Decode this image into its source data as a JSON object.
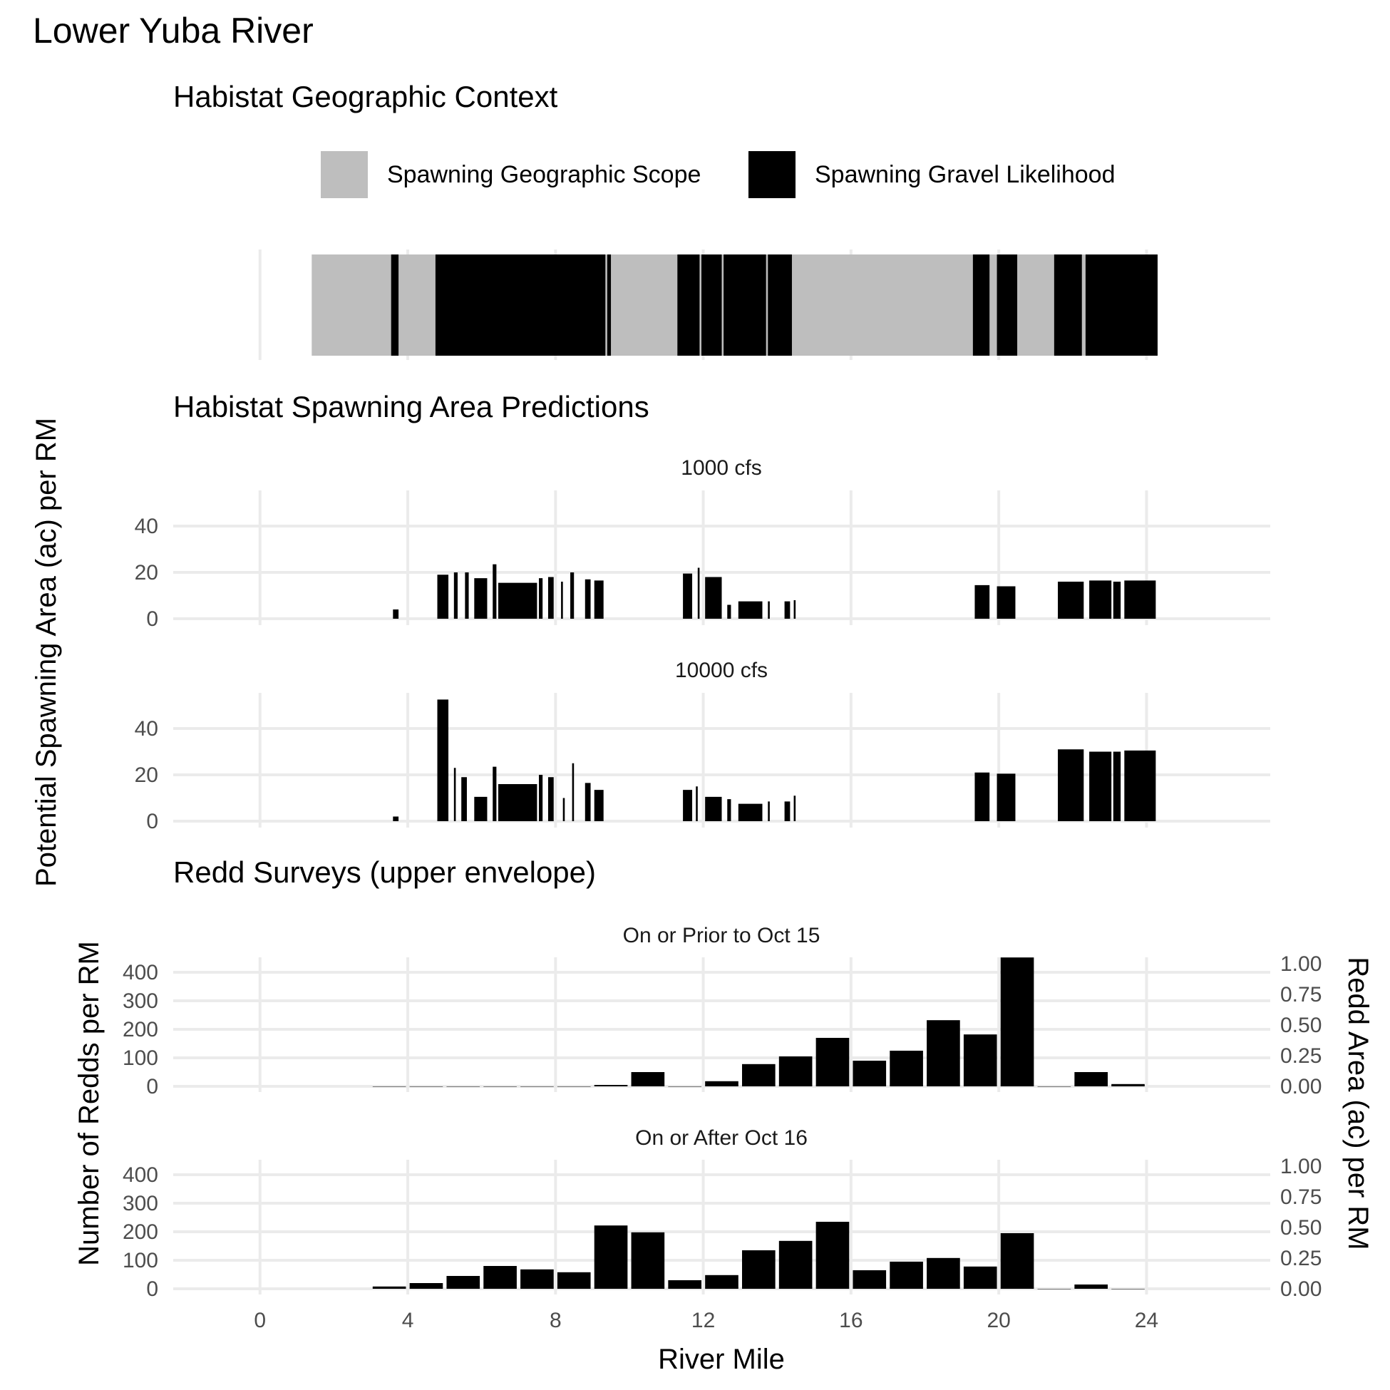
{
  "title": "Lower Yuba River",
  "geo": {
    "subtitle": "Habistat Geographic Context",
    "legend": [
      {
        "label": "Spawning Geographic Scope",
        "color": "#bebebe"
      },
      {
        "label": "Spawning Gravel Likelihood",
        "color": "#000000"
      }
    ],
    "scope": [
      [
        1.4,
        24.3
      ]
    ],
    "gravel": [
      [
        3.55,
        3.75
      ],
      [
        4.75,
        9.35
      ],
      [
        9.4,
        9.5
      ],
      [
        11.3,
        11.9
      ],
      [
        11.95,
        12.5
      ],
      [
        12.55,
        13.7
      ],
      [
        13.75,
        14.4
      ],
      [
        19.3,
        19.75
      ],
      [
        19.95,
        20.5
      ],
      [
        21.5,
        22.25
      ],
      [
        22.35,
        24.3
      ]
    ]
  },
  "pred": {
    "subtitle": "Habistat Spawning Area Predictions",
    "ylabel": "Potential Spawning Area (ac) per RM",
    "panels": [
      "1000 cfs",
      "10000 cfs"
    ]
  },
  "redd": {
    "subtitle": "Redd Surveys (upper envelope)",
    "ylabel": "Number of Redds per RM",
    "ylabel2": "Redd Area (ac) per RM",
    "panels": [
      "On or Prior to Oct 15",
      "On or After Oct 16"
    ]
  },
  "xlabel": "River Mile",
  "colors": {
    "grid": "#ebebeb",
    "bar": "#000000",
    "scope": "#bebebe"
  },
  "chart_data": [
    {
      "type": "bar",
      "title": "1000 cfs",
      "xlabel": "River Mile",
      "ylabel": "Potential Spawning Area (ac) per RM",
      "xlim": [
        -2.35,
        27.35
      ],
      "ylim": [
        0,
        55
      ],
      "x_ticks": [
        0,
        4,
        8,
        12,
        16,
        20,
        24
      ],
      "y_ticks": [
        0,
        20,
        40
      ],
      "bars": [
        {
          "x0": 3.6,
          "x1": 3.75,
          "y": 4
        },
        {
          "x0": 4.8,
          "x1": 5.1,
          "y": 19
        },
        {
          "x0": 5.25,
          "x1": 5.35,
          "y": 20
        },
        {
          "x0": 5.55,
          "x1": 5.65,
          "y": 20
        },
        {
          "x0": 5.8,
          "x1": 6.15,
          "y": 17.5
        },
        {
          "x0": 6.3,
          "x1": 6.4,
          "y": 23.5
        },
        {
          "x0": 6.45,
          "x1": 7.5,
          "y": 15.5
        },
        {
          "x0": 7.55,
          "x1": 7.65,
          "y": 17.5
        },
        {
          "x0": 7.8,
          "x1": 7.95,
          "y": 18
        },
        {
          "x0": 8.15,
          "x1": 8.2,
          "y": 16
        },
        {
          "x0": 8.4,
          "x1": 8.5,
          "y": 20
        },
        {
          "x0": 8.8,
          "x1": 8.95,
          "y": 17
        },
        {
          "x0": 9.05,
          "x1": 9.3,
          "y": 16.5
        },
        {
          "x0": 11.45,
          "x1": 11.7,
          "y": 19.5
        },
        {
          "x0": 11.85,
          "x1": 11.9,
          "y": 22
        },
        {
          "x0": 12.05,
          "x1": 12.5,
          "y": 18
        },
        {
          "x0": 12.65,
          "x1": 12.75,
          "y": 6
        },
        {
          "x0": 12.95,
          "x1": 13.6,
          "y": 7.5
        },
        {
          "x0": 13.75,
          "x1": 13.8,
          "y": 7.5
        },
        {
          "x0": 14.2,
          "x1": 14.35,
          "y": 7.5
        },
        {
          "x0": 14.45,
          "x1": 14.5,
          "y": 8
        },
        {
          "x0": 19.35,
          "x1": 19.75,
          "y": 14.5
        },
        {
          "x0": 19.95,
          "x1": 20.45,
          "y": 14
        },
        {
          "x0": 21.6,
          "x1": 22.3,
          "y": 16
        },
        {
          "x0": 22.45,
          "x1": 23.05,
          "y": 16.5
        },
        {
          "x0": 23.1,
          "x1": 23.3,
          "y": 16
        },
        {
          "x0": 23.4,
          "x1": 24.25,
          "y": 16.5
        }
      ]
    },
    {
      "type": "bar",
      "title": "10000 cfs",
      "xlabel": "River Mile",
      "ylabel": "Potential Spawning Area (ac) per RM",
      "xlim": [
        -2.35,
        27.35
      ],
      "ylim": [
        0,
        55
      ],
      "x_ticks": [
        0,
        4,
        8,
        12,
        16,
        20,
        24
      ],
      "y_ticks": [
        0,
        20,
        40
      ],
      "bars": [
        {
          "x0": 3.6,
          "x1": 3.75,
          "y": 2
        },
        {
          "x0": 4.8,
          "x1": 5.1,
          "y": 52.5
        },
        {
          "x0": 5.25,
          "x1": 5.3,
          "y": 23
        },
        {
          "x0": 5.45,
          "x1": 5.6,
          "y": 19
        },
        {
          "x0": 5.8,
          "x1": 6.15,
          "y": 10.5
        },
        {
          "x0": 6.3,
          "x1": 6.4,
          "y": 23.5
        },
        {
          "x0": 6.45,
          "x1": 7.5,
          "y": 16
        },
        {
          "x0": 7.55,
          "x1": 7.65,
          "y": 20
        },
        {
          "x0": 7.8,
          "x1": 7.95,
          "y": 19
        },
        {
          "x0": 8.2,
          "x1": 8.25,
          "y": 10
        },
        {
          "x0": 8.45,
          "x1": 8.5,
          "y": 25
        },
        {
          "x0": 8.8,
          "x1": 8.95,
          "y": 16.5
        },
        {
          "x0": 9.05,
          "x1": 9.3,
          "y": 13.5
        },
        {
          "x0": 11.45,
          "x1": 11.7,
          "y": 13.5
        },
        {
          "x0": 11.8,
          "x1": 11.85,
          "y": 15
        },
        {
          "x0": 12.05,
          "x1": 12.5,
          "y": 10.5
        },
        {
          "x0": 12.65,
          "x1": 12.75,
          "y": 9.5
        },
        {
          "x0": 12.95,
          "x1": 13.6,
          "y": 7.5
        },
        {
          "x0": 13.75,
          "x1": 13.8,
          "y": 8.5
        },
        {
          "x0": 14.2,
          "x1": 14.35,
          "y": 8.5
        },
        {
          "x0": 14.45,
          "x1": 14.5,
          "y": 11
        },
        {
          "x0": 19.35,
          "x1": 19.75,
          "y": 21
        },
        {
          "x0": 19.95,
          "x1": 20.45,
          "y": 20.5
        },
        {
          "x0": 21.6,
          "x1": 22.3,
          "y": 31
        },
        {
          "x0": 22.45,
          "x1": 23.05,
          "y": 30
        },
        {
          "x0": 23.1,
          "x1": 23.3,
          "y": 30
        },
        {
          "x0": 23.4,
          "x1": 24.25,
          "y": 30.5
        }
      ]
    },
    {
      "type": "bar",
      "title": "On or Prior to Oct 15",
      "xlabel": "River Mile",
      "ylabel": "Number of Redds per RM",
      "y2label": "Redd Area (ac) per RM",
      "xlim": [
        -2.35,
        27.35
      ],
      "ylim": [
        0,
        470
      ],
      "y2lim": [
        0,
        1.0
      ],
      "x_ticks": [
        0,
        4,
        8,
        12,
        16,
        20,
        24
      ],
      "y_ticks": [
        0,
        100,
        200,
        300,
        400
      ],
      "y2_ticks": [
        "0.00",
        "0.25",
        "0.50",
        "0.75",
        "1.00"
      ],
      "categories": [
        3.5,
        4.5,
        5.5,
        6.5,
        7.5,
        8.5,
        9.5,
        10.5,
        11.5,
        12.5,
        13.5,
        14.5,
        15.5,
        16.5,
        17.5,
        18.5,
        19.5,
        20.5,
        21.5,
        22.5,
        23.5
      ],
      "values": [
        0,
        0,
        0,
        0,
        0,
        0,
        5,
        50,
        0,
        18,
        78,
        105,
        170,
        90,
        125,
        232,
        182,
        452,
        0,
        50,
        8
      ]
    },
    {
      "type": "bar",
      "title": "On or After Oct 16",
      "xlabel": "River Mile",
      "ylabel": "Number of Redds per RM",
      "y2label": "Redd Area (ac) per RM",
      "xlim": [
        -2.35,
        27.35
      ],
      "ylim": [
        0,
        470
      ],
      "y2lim": [
        0,
        1.0
      ],
      "x_ticks": [
        0,
        4,
        8,
        12,
        16,
        20,
        24
      ],
      "y_ticks": [
        0,
        100,
        200,
        300,
        400
      ],
      "y2_ticks": [
        "0.00",
        "0.25",
        "0.50",
        "0.75",
        "1.00"
      ],
      "categories": [
        3.5,
        4.5,
        5.5,
        6.5,
        7.5,
        8.5,
        9.5,
        10.5,
        11.5,
        12.5,
        13.5,
        14.5,
        15.5,
        16.5,
        17.5,
        18.5,
        19.5,
        20.5,
        21.5,
        22.5,
        23.5
      ],
      "values": [
        8,
        20,
        45,
        80,
        68,
        58,
        222,
        198,
        30,
        48,
        135,
        168,
        235,
        65,
        95,
        108,
        78,
        195,
        0,
        15,
        0
      ]
    }
  ]
}
